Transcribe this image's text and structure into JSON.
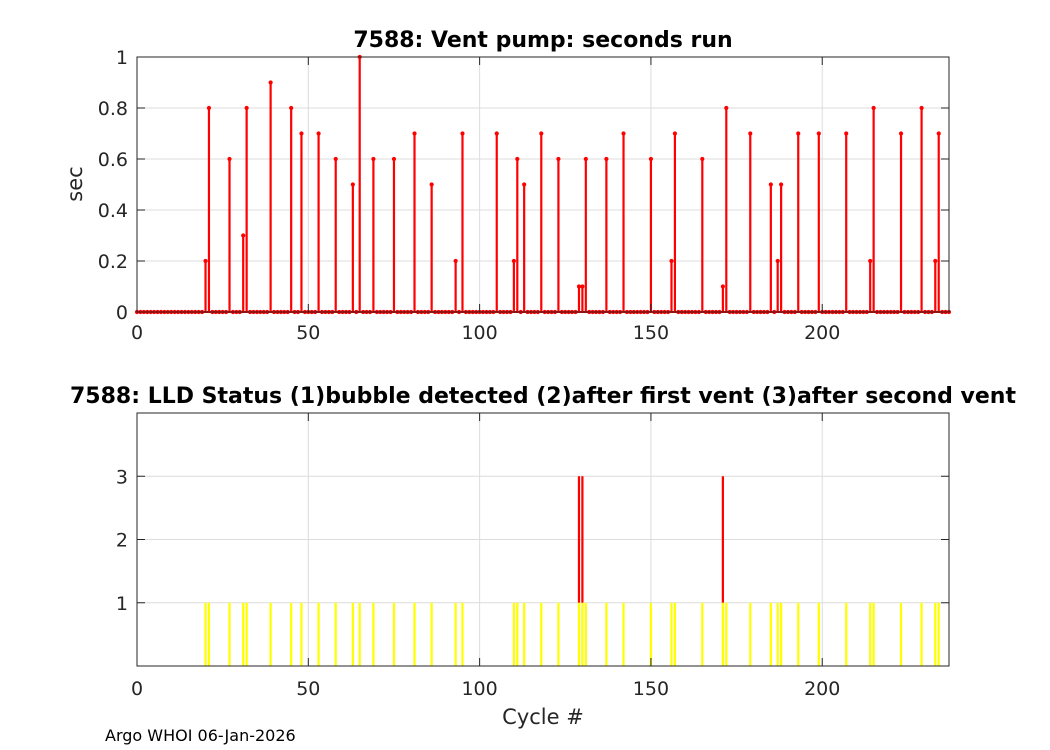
{
  "footer": "Argo WHOI 06-Jan-2026",
  "chart_data": [
    {
      "type": "stem",
      "title": "7588: Vent pump: seconds run",
      "xlabel": "",
      "ylabel": "sec",
      "xlim": [
        0,
        237
      ],
      "ylim": [
        0,
        1
      ],
      "xticks": [
        0,
        50,
        100,
        150,
        200
      ],
      "yticks": [
        0,
        0.2,
        0.4,
        0.6,
        0.8,
        1
      ],
      "ytick_labels": [
        "0",
        "0.2",
        "0.4",
        "0.6",
        "0.8",
        "1"
      ],
      "grid": true,
      "color": "#ff0000",
      "n_cycles": 237,
      "points": [
        [
          20,
          0.2
        ],
        [
          21,
          0.8
        ],
        [
          27,
          0.6
        ],
        [
          31,
          0.3
        ],
        [
          32,
          0.8
        ],
        [
          39,
          0.9
        ],
        [
          45,
          0.8
        ],
        [
          48,
          0.7
        ],
        [
          53,
          0.7
        ],
        [
          58,
          0.6
        ],
        [
          63,
          0.5
        ],
        [
          65,
          1.0
        ],
        [
          69,
          0.6
        ],
        [
          75,
          0.6
        ],
        [
          81,
          0.7
        ],
        [
          86,
          0.5
        ],
        [
          93,
          0.2
        ],
        [
          95,
          0.7
        ],
        [
          105,
          0.7
        ],
        [
          110,
          0.2
        ],
        [
          111,
          0.6
        ],
        [
          113,
          0.5
        ],
        [
          118,
          0.7
        ],
        [
          123,
          0.6
        ],
        [
          129,
          0.1
        ],
        [
          130,
          0.1
        ],
        [
          131,
          0.6
        ],
        [
          137,
          0.6
        ],
        [
          142,
          0.7
        ],
        [
          150,
          0.6
        ],
        [
          156,
          0.2
        ],
        [
          157,
          0.7
        ],
        [
          165,
          0.6
        ],
        [
          171,
          0.1
        ],
        [
          172,
          0.8
        ],
        [
          179,
          0.7
        ],
        [
          185,
          0.5
        ],
        [
          187,
          0.2
        ],
        [
          188,
          0.5
        ],
        [
          193,
          0.7
        ],
        [
          199,
          0.7
        ],
        [
          207,
          0.7
        ],
        [
          214,
          0.2
        ],
        [
          215,
          0.8
        ],
        [
          223,
          0.7
        ],
        [
          229,
          0.8
        ],
        [
          233,
          0.2
        ],
        [
          234,
          0.7
        ]
      ]
    },
    {
      "type": "bar",
      "title": "7588: LLD Status   (1)bubble detected   (2)after first vent  (3)after second vent",
      "xlabel": "Cycle #",
      "ylabel": "",
      "xlim": [
        0,
        237
      ],
      "ylim": [
        0,
        4
      ],
      "xticks": [
        0,
        50,
        100,
        150,
        200
      ],
      "yticks": [
        1,
        2,
        3
      ],
      "grid": true,
      "colors": {
        "status_1": "#ffff00",
        "status_3": "#ff0000"
      },
      "points": [
        [
          20,
          1
        ],
        [
          21,
          1
        ],
        [
          27,
          1
        ],
        [
          31,
          1
        ],
        [
          32,
          1
        ],
        [
          39,
          1
        ],
        [
          45,
          1
        ],
        [
          48,
          1
        ],
        [
          53,
          1
        ],
        [
          58,
          1
        ],
        [
          63,
          1
        ],
        [
          65,
          1
        ],
        [
          69,
          1
        ],
        [
          75,
          1
        ],
        [
          81,
          1
        ],
        [
          86,
          1
        ],
        [
          93,
          1
        ],
        [
          95,
          1
        ],
        [
          110,
          1
        ],
        [
          111,
          1
        ],
        [
          113,
          1
        ],
        [
          118,
          1
        ],
        [
          123,
          1
        ],
        [
          129,
          3
        ],
        [
          130,
          3
        ],
        [
          131,
          1
        ],
        [
          137,
          1
        ],
        [
          142,
          1
        ],
        [
          150,
          1
        ],
        [
          156,
          1
        ],
        [
          157,
          1
        ],
        [
          165,
          1
        ],
        [
          171,
          3
        ],
        [
          172,
          1
        ],
        [
          179,
          1
        ],
        [
          185,
          1
        ],
        [
          187,
          1
        ],
        [
          188,
          1
        ],
        [
          193,
          1
        ],
        [
          199,
          1
        ],
        [
          207,
          1
        ],
        [
          214,
          1
        ],
        [
          215,
          1
        ],
        [
          223,
          1
        ],
        [
          229,
          1
        ],
        [
          233,
          1
        ],
        [
          234,
          1
        ]
      ]
    }
  ]
}
